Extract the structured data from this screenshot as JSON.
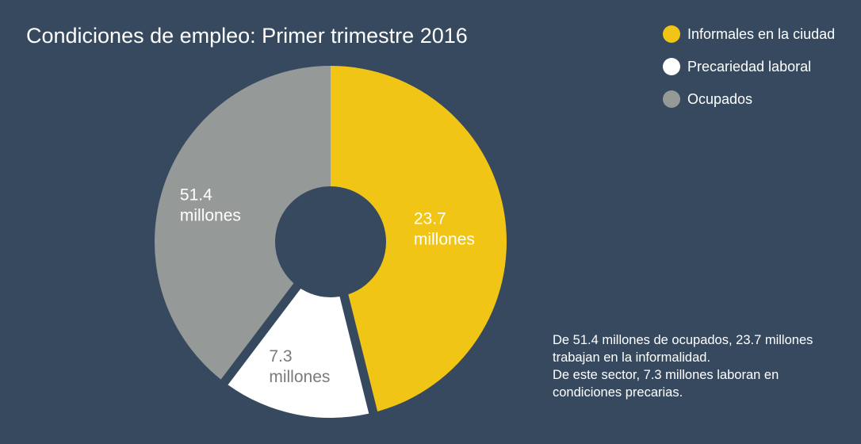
{
  "title": "Condiciones de empleo: Primer trimestre 2016",
  "chart_data": {
    "type": "pie",
    "title": "Condiciones de empleo: Primer trimestre 2016",
    "total": 51.4,
    "series": [
      {
        "name": "Informales en la ciudad",
        "value": 23.7,
        "color": "#f1c515",
        "label_value": "23.7",
        "label_unit": "millones",
        "label_color": "#ffffff"
      },
      {
        "name": "Precariedad laboral",
        "value": 7.3,
        "color": "#ffffff",
        "label_value": "7.3",
        "label_unit": "millones",
        "label_color": "#7a7a7a"
      },
      {
        "name": "Ocupados",
        "value": 51.4,
        "color": "#959998",
        "label_value": "51.4",
        "label_unit": "millones",
        "label_color": "#ffffff"
      }
    ],
    "background": "#36495e",
    "legend_position": "top-right"
  },
  "note": {
    "line1": "De 51.4 millones de ocupados, 23.7 millones trabajan en la informalidad.",
    "line2": "De este sector, 7.3 millones laboran en condiciones precarias."
  }
}
